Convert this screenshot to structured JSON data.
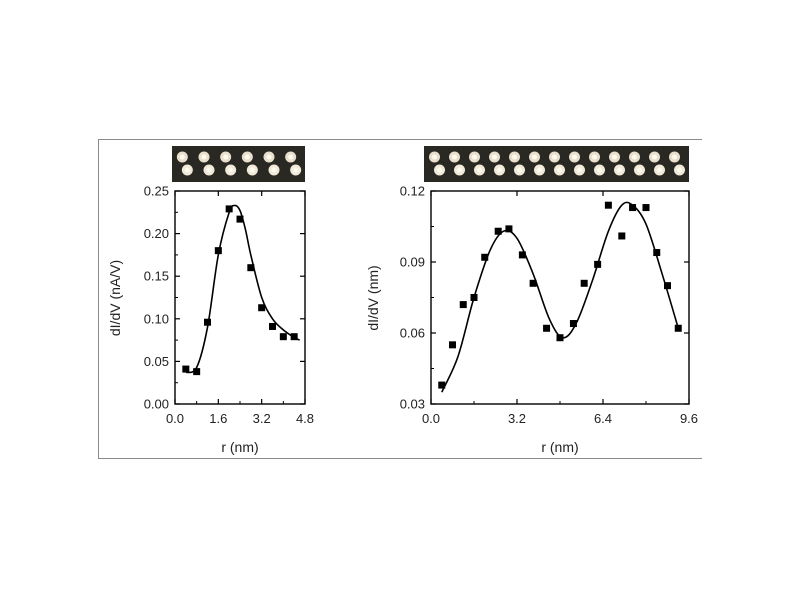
{
  "chart_data": [
    {
      "type": "scatter",
      "xlabel": "r (nm)",
      "ylabel": "dI/dV (nA/V)",
      "xlim": [
        0,
        4.8
      ],
      "ylim": [
        0,
        0.25
      ],
      "xticks": [
        "0.0",
        "1.6",
        "3.2",
        "4.8"
      ],
      "yticks": [
        "0.00",
        "0.05",
        "0.10",
        "0.15",
        "0.20",
        "0.25"
      ],
      "series": [
        {
          "kind": "points",
          "x": [
            0.4,
            0.8,
            1.2,
            1.6,
            2.0,
            2.4,
            2.8,
            3.2,
            3.6,
            4.0,
            4.4
          ],
          "y": [
            0.041,
            0.038,
            0.096,
            0.18,
            0.229,
            0.217,
            0.16,
            0.113,
            0.091,
            0.079,
            0.079
          ]
        },
        {
          "kind": "fit",
          "x": [
            0.4,
            0.8,
            1.2,
            1.6,
            2.0,
            2.2,
            2.4,
            2.6,
            2.8,
            3.2,
            3.6,
            4.0,
            4.4,
            4.6
          ],
          "y": [
            0.037,
            0.043,
            0.09,
            0.175,
            0.225,
            0.233,
            0.227,
            0.205,
            0.175,
            0.125,
            0.1,
            0.087,
            0.078,
            0.075
          ]
        }
      ],
      "stm_image": {
        "dimers": 6
      }
    },
    {
      "type": "scatter",
      "xlabel": "r (nm)",
      "ylabel": "dI/dV (nm)",
      "xlim": [
        0,
        9.6
      ],
      "ylim": [
        0.03,
        0.12
      ],
      "xticks": [
        "0.0",
        "3.2",
        "6.4",
        "9.6"
      ],
      "yticks": [
        "0.03",
        "0.06",
        "0.09",
        "0.12"
      ],
      "series": [
        {
          "kind": "points",
          "x": [
            0.4,
            0.8,
            1.2,
            1.6,
            2.0,
            2.5,
            2.9,
            3.4,
            3.8,
            4.3,
            4.8,
            5.3,
            5.7,
            6.2,
            6.6,
            7.1,
            7.5,
            8.0,
            8.4,
            8.8,
            9.2
          ],
          "y": [
            0.038,
            0.055,
            0.072,
            0.075,
            0.092,
            0.103,
            0.104,
            0.093,
            0.081,
            0.062,
            0.058,
            0.064,
            0.081,
            0.089,
            0.114,
            0.101,
            0.113,
            0.113,
            0.094,
            0.08,
            0.062
          ]
        },
        {
          "kind": "fit",
          "x": [
            0.4,
            1.0,
            1.6,
            2.2,
            2.7,
            3.2,
            3.8,
            4.4,
            4.9,
            5.4,
            6.0,
            6.6,
            7.1,
            7.5,
            8.0,
            8.6,
            9.2
          ],
          "y": [
            0.035,
            0.05,
            0.075,
            0.095,
            0.103,
            0.1,
            0.085,
            0.066,
            0.058,
            0.064,
            0.082,
            0.103,
            0.114,
            0.114,
            0.106,
            0.085,
            0.062
          ]
        }
      ],
      "stm_image": {
        "dimers": 13
      }
    }
  ]
}
